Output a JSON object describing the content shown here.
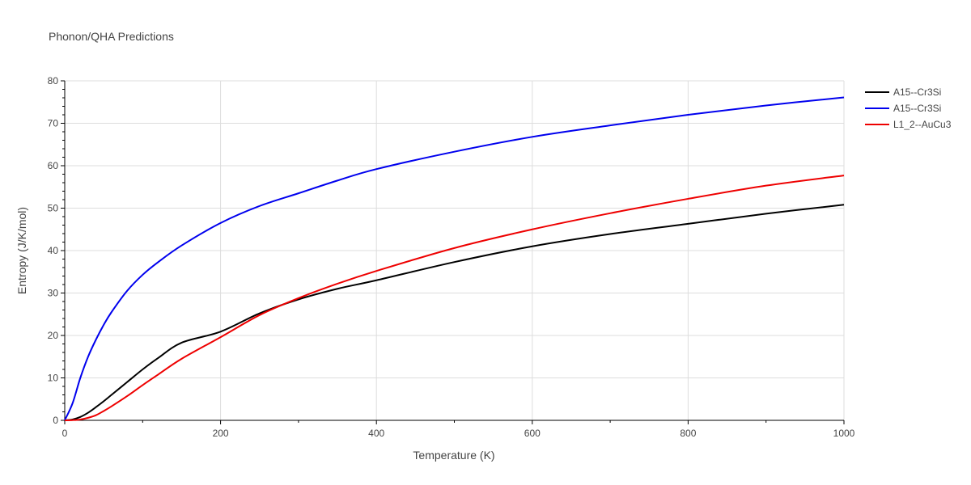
{
  "chart_data": {
    "type": "line",
    "title": "Phonon/QHA Predictions",
    "xlabel": "Temperature (K)",
    "ylabel": "Entropy (J/K/mol)",
    "xlim": [
      0,
      1000
    ],
    "ylim": [
      0,
      80
    ],
    "x_ticks": [
      0,
      200,
      400,
      600,
      800,
      1000
    ],
    "y_ticks": [
      0,
      10,
      20,
      30,
      40,
      50,
      60,
      70,
      80
    ],
    "grid": true,
    "legend_position": "right",
    "series": [
      {
        "name": "A15--Cr3Si",
        "color": "#000000",
        "x": [
          0,
          10,
          20,
          30,
          40,
          50,
          60,
          80,
          100,
          120,
          150,
          200,
          250,
          300,
          350,
          400,
          500,
          600,
          700,
          800,
          900,
          1000
        ],
        "y": [
          0,
          0.2,
          0.8,
          1.8,
          3.1,
          4.5,
          6.0,
          9.0,
          12.0,
          14.7,
          18.3,
          20.9,
          25.2,
          28.5,
          31.0,
          33.0,
          37.3,
          41.0,
          43.9,
          46.3,
          48.7,
          50.8
        ]
      },
      {
        "name": "A15--Cr3Si",
        "color": "#0000ee",
        "x": [
          0,
          10,
          20,
          30,
          40,
          50,
          60,
          80,
          100,
          120,
          150,
          200,
          250,
          300,
          350,
          400,
          500,
          600,
          700,
          800,
          900,
          1000
        ],
        "y": [
          0,
          4.0,
          10.0,
          15.0,
          19.0,
          22.5,
          25.5,
          30.5,
          34.3,
          37.3,
          41.2,
          46.5,
          50.5,
          53.5,
          56.5,
          59.2,
          63.3,
          66.8,
          69.5,
          72.0,
          74.2,
          76.1
        ]
      },
      {
        "name": "L1_2--AuCu3",
        "color": "#ee0000",
        "x": [
          0,
          10,
          20,
          30,
          40,
          50,
          60,
          80,
          100,
          120,
          150,
          200,
          250,
          300,
          350,
          400,
          500,
          600,
          700,
          800,
          900,
          1000
        ],
        "y": [
          0,
          0.05,
          0.2,
          0.6,
          1.2,
          2.2,
          3.3,
          5.7,
          8.3,
          10.8,
          14.5,
          19.6,
          24.8,
          28.8,
          32.2,
          35.2,
          40.6,
          45.0,
          48.8,
          52.2,
          55.3,
          57.7
        ]
      }
    ]
  }
}
